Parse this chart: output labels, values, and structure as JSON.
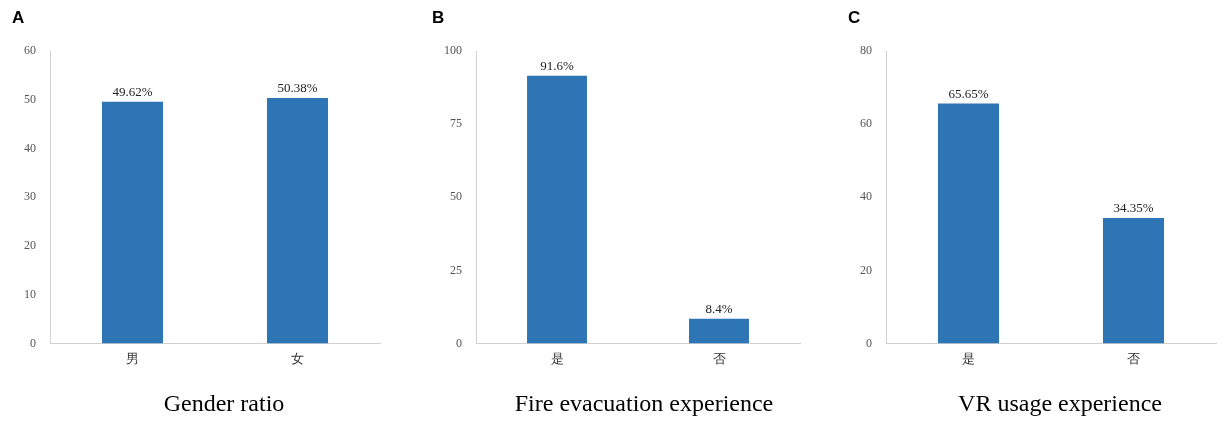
{
  "chart_data": [
    {
      "type": "bar",
      "title": "A",
      "xlabel": "Gender ratio",
      "categories": [
        "男",
        "女"
      ],
      "values": [
        49.62,
        50.38
      ],
      "value_labels": [
        "49.62%",
        "50.38%"
      ],
      "color": "#2e75b6",
      "ylim": [
        0,
        60
      ],
      "yticks": [
        0,
        10,
        20,
        30,
        40,
        50,
        60
      ],
      "grid": false,
      "legend": false
    },
    {
      "type": "bar",
      "title": "B",
      "xlabel": "Fire evacuation experience",
      "categories": [
        "是",
        "否"
      ],
      "values": [
        91.6,
        8.4
      ],
      "value_labels": [
        "91.6%",
        "8.4%"
      ],
      "color": "#2e75b6",
      "ylim": [
        0,
        100
      ],
      "yticks": [
        0,
        25,
        50,
        75,
        100
      ],
      "grid": false,
      "legend": false
    },
    {
      "type": "bar",
      "title": "C",
      "xlabel": "VR usage experience",
      "categories": [
        "是",
        "否"
      ],
      "values": [
        65.65,
        34.35
      ],
      "value_labels": [
        "65.65%",
        "34.35%"
      ],
      "color": "#2e75b6",
      "ylim": [
        0,
        80
      ],
      "yticks": [
        0,
        20,
        40,
        60,
        80
      ],
      "grid": false,
      "legend": false
    }
  ]
}
